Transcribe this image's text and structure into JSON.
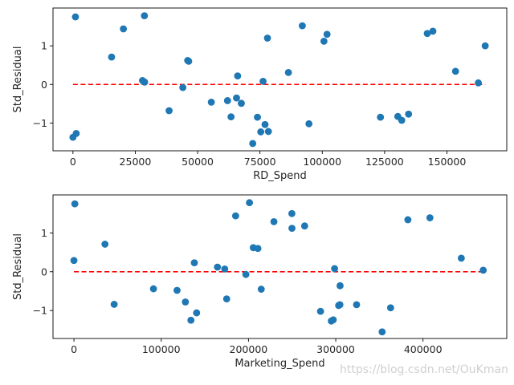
{
  "colors": {
    "point": "#1f77b4",
    "baseline": "#ff0000",
    "axis": "#000000"
  },
  "watermark": "https://blog.csdn.net/OuKman",
  "chart_data": [
    {
      "type": "scatter",
      "xlabel": "RD_Spend",
      "ylabel": "Std_Residual",
      "xlim": [
        -8000,
        174000
      ],
      "ylim": [
        -1.72,
        1.98
      ],
      "xticks": [
        0,
        25000,
        50000,
        75000,
        100000,
        125000,
        150000
      ],
      "xtick_labels": [
        "0",
        "25000",
        "50000",
        "75000",
        "100000",
        "125000",
        "150000"
      ],
      "yticks": [
        -1,
        0,
        1
      ],
      "ytick_labels": [
        "−1",
        "0",
        "1"
      ],
      "baseline": {
        "y": 0,
        "x_from": 0,
        "x_to": 165349,
        "style": "dashed"
      },
      "x": [
        1000,
        28663,
        20230,
        15506,
        27893,
        28754,
        46014,
        46426,
        44070,
        38558,
        0,
        1316,
        55494,
        61995,
        63409,
        66052,
        67533,
        65605,
        72107,
        73994,
        75329,
        76254,
        77044,
        78013,
        78389,
        86420,
        91992,
        94657,
        100672,
        101913,
        123335,
        130298,
        131877,
        134615,
        142107,
        144372,
        153442,
        162598,
        165349
      ],
      "y": [
        1.75,
        1.78,
        1.44,
        0.71,
        0.1,
        0.06,
        0.62,
        0.6,
        -0.08,
        -0.68,
        -1.37,
        -1.27,
        -0.46,
        -0.42,
        -0.84,
        0.22,
        -0.49,
        -0.35,
        -1.53,
        -0.85,
        -1.23,
        0.08,
        -1.04,
        1.2,
        -1.22,
        0.31,
        1.52,
        -1.02,
        1.12,
        1.3,
        -0.85,
        -0.83,
        -0.93,
        -0.77,
        1.32,
        1.38,
        0.34,
        0.04,
        1.0
      ]
    },
    {
      "type": "scatter",
      "xlabel": "Marketing_Spend",
      "ylabel": "Std_Residual",
      "xlim": [
        -24000,
        496000
      ],
      "ylim": [
        -1.72,
        1.98
      ],
      "xticks": [
        0,
        100000,
        200000,
        300000,
        400000
      ],
      "xtick_labels": [
        "0",
        "100000",
        "200000",
        "300000",
        "400000"
      ],
      "yticks": [
        -1,
        0,
        1
      ],
      "ytick_labels": [
        "−1",
        "0",
        "1"
      ],
      "baseline": {
        "y": 0,
        "x_from": 0,
        "x_to": 471784,
        "style": "dashed"
      },
      "x": [
        1000,
        0,
        35534,
        46085,
        91131,
        118148,
        127716,
        134050,
        137962,
        140574,
        164470,
        172795,
        174999,
        185265,
        197029,
        201127,
        205517,
        210797,
        214634,
        229161,
        249744,
        249839,
        264346,
        282574,
        294919,
        297114,
        298664,
        303319,
        304768,
        304982,
        323877,
        353184,
        362861,
        382684,
        407934,
        443898,
        469000
      ],
      "y": [
        1.75,
        0.29,
        0.71,
        -0.84,
        -0.44,
        -0.48,
        -0.78,
        -1.25,
        0.23,
        -1.06,
        0.12,
        0.07,
        -0.7,
        1.44,
        -0.07,
        1.78,
        0.62,
        0.6,
        -0.45,
        1.29,
        1.5,
        1.12,
        1.18,
        -1.02,
        -1.27,
        -1.24,
        0.08,
        -0.87,
        -0.85,
        -0.36,
        -0.85,
        -1.55,
        -0.93,
        1.34,
        1.39,
        0.35,
        0.04
      ]
    }
  ]
}
